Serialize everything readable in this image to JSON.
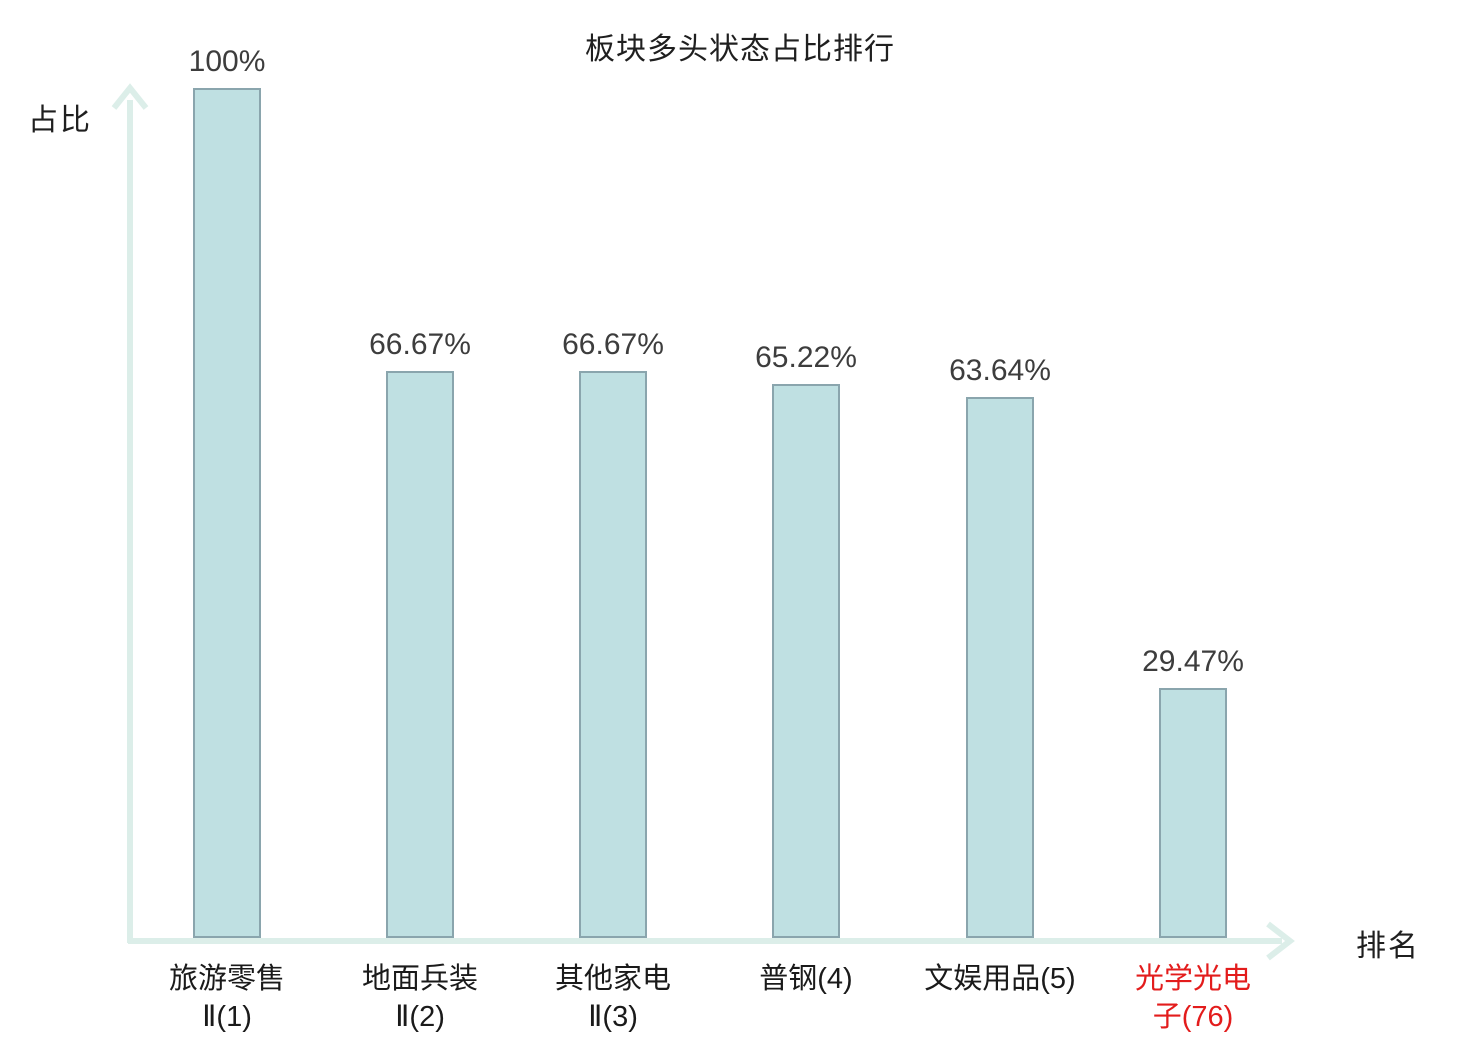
{
  "chart_data": {
    "type": "bar",
    "title": "板块多头状态占比排行",
    "xlabel": "排名",
    "ylabel": "占比",
    "ylim": [
      0,
      100
    ],
    "grid": false,
    "legend": false,
    "categories": [
      "旅游零售Ⅱ(1)",
      "地面兵装Ⅱ(2)",
      "其他家电Ⅱ(3)",
      "普钢(4)",
      "文娱用品(5)",
      "光学光电子(76)"
    ],
    "values": [
      100,
      66.67,
      66.67,
      65.22,
      63.64,
      29.47
    ],
    "value_labels": [
      "100%",
      "66.67%",
      "66.67%",
      "65.22%",
      "63.64%",
      "29.47%"
    ],
    "highlighted_category_index": 5,
    "colors": {
      "bar_fill": "#bfe0e2",
      "bar_border": "#8aa5ad",
      "axis": "#dceee9",
      "text": "#1a1a1a",
      "value_text": "#3d3d3d",
      "highlight": "#e31c1c"
    },
    "bars": [
      {
        "line1": "旅游零售",
        "line2": "Ⅱ(1)",
        "value": 100,
        "value_label": "100%",
        "label_color": "#1a1a1a"
      },
      {
        "line1": "地面兵装",
        "line2": "Ⅱ(2)",
        "value": 66.67,
        "value_label": "66.67%",
        "label_color": "#1a1a1a"
      },
      {
        "line1": "其他家电",
        "line2": "Ⅱ(3)",
        "value": 66.67,
        "value_label": "66.67%",
        "label_color": "#1a1a1a"
      },
      {
        "line1": "普钢(4)",
        "line2": "",
        "value": 65.22,
        "value_label": "65.22%",
        "label_color": "#1a1a1a"
      },
      {
        "line1": "文娱用品(5)",
        "line2": "",
        "value": 63.64,
        "value_label": "63.64%",
        "label_color": "#1a1a1a"
      },
      {
        "line1": "光学光电",
        "line2": "子(76)",
        "value": 29.47,
        "value_label": "29.47%",
        "label_color": "#e31c1c"
      }
    ]
  }
}
